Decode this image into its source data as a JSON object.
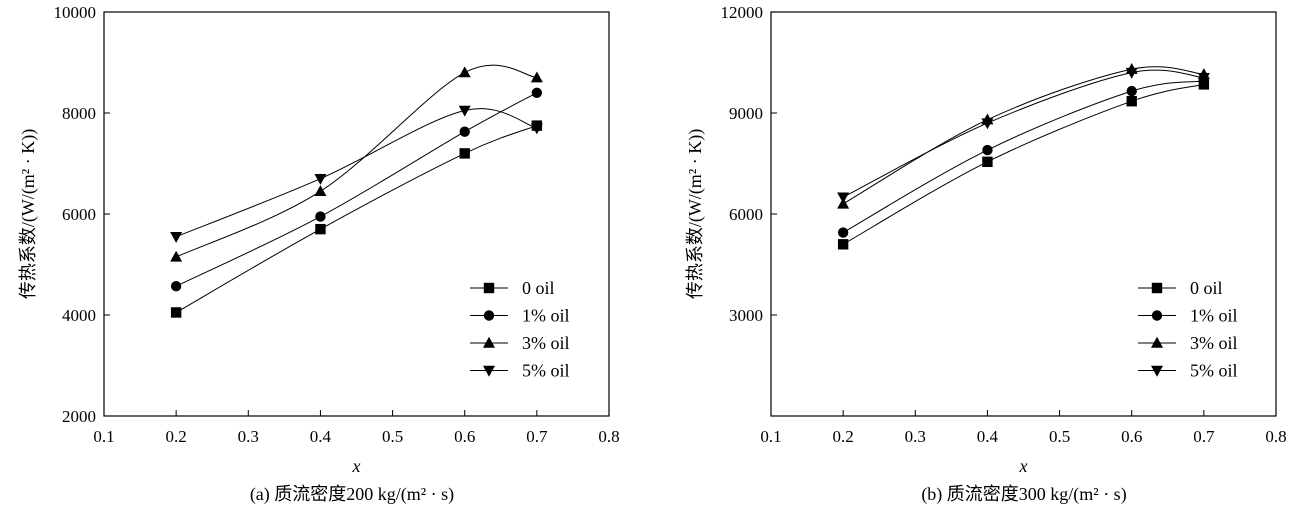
{
  "chart_data": [
    {
      "id": "a",
      "type": "scatter",
      "title": "(a) 质流密度200 kg/(m² · s)",
      "xlabel": "x",
      "ylabel": "传热系数/(W/(m² · K))",
      "xlim": [
        0.1,
        0.8
      ],
      "ylim": [
        2000,
        10000
      ],
      "xticks": [
        "0.1",
        "0.2",
        "0.3",
        "0.4",
        "0.5",
        "0.6",
        "0.7",
        "0.8"
      ],
      "yticks": [
        "2000",
        "4000",
        "6000",
        "8000",
        "10000"
      ],
      "legend_position": "lower-right",
      "x": [
        0.2,
        0.4,
        0.6,
        0.7
      ],
      "series": [
        {
          "name": "0 oil",
          "marker": "square",
          "values": [
            4050,
            5700,
            7200,
            7750
          ]
        },
        {
          "name": "1% oil",
          "marker": "circle",
          "values": [
            4570,
            5950,
            7630,
            8400
          ]
        },
        {
          "name": "3% oil",
          "marker": "triangle-up",
          "values": [
            5150,
            6450,
            8800,
            8700
          ]
        },
        {
          "name": "5% oil",
          "marker": "triangle-down",
          "values": [
            5550,
            6700,
            8050,
            7700
          ]
        }
      ]
    },
    {
      "id": "b",
      "type": "scatter",
      "title": "(b) 质流密度300 kg/(m² · s)",
      "xlabel": "x",
      "ylabel": "传热系数/(W/(m² · K))",
      "xlim": [
        0.1,
        0.8
      ],
      "ylim": [
        0,
        12000
      ],
      "xticks": [
        "0.1",
        "0.2",
        "0.3",
        "0.4",
        "0.5",
        "0.6",
        "0.7",
        "0.8"
      ],
      "yticks": [
        "3000",
        "6000",
        "9000",
        "12000"
      ],
      "legend_position": "lower-right",
      "x": [
        0.2,
        0.4,
        0.6,
        0.7
      ],
      "series": [
        {
          "name": "0 oil",
          "marker": "square",
          "values": [
            5100,
            7550,
            9350,
            9850
          ]
        },
        {
          "name": "1% oil",
          "marker": "circle",
          "values": [
            5450,
            7900,
            9650,
            9950
          ]
        },
        {
          "name": "3% oil",
          "marker": "triangle-up",
          "values": [
            6300,
            8800,
            10300,
            10150
          ]
        },
        {
          "name": "5% oil",
          "marker": "triangle-down",
          "values": [
            6500,
            8700,
            10200,
            10050
          ]
        }
      ]
    }
  ]
}
